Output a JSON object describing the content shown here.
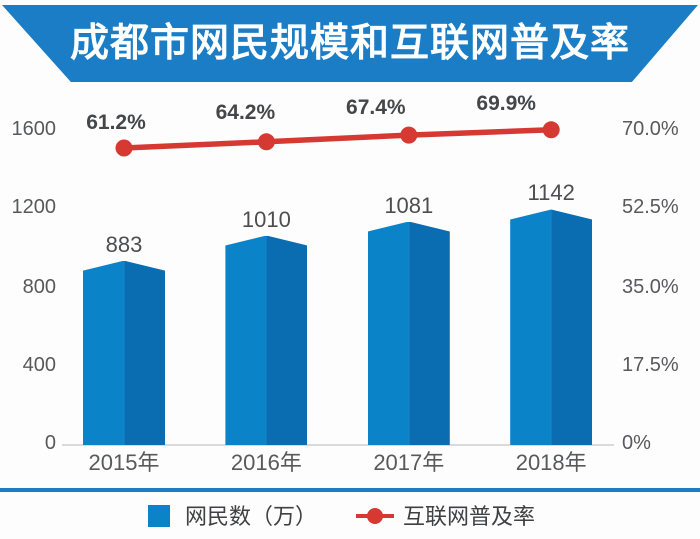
{
  "title": "成都市网民规模和互联网普及率",
  "legend": {
    "bar_label": "网民数（万）",
    "line_label": "互联网普及率"
  },
  "chart_data": {
    "type": "bar",
    "title": "成都市网民规模和互联网普及率",
    "categories": [
      "2015年",
      "2016年",
      "2017年",
      "2018年"
    ],
    "series": [
      {
        "name": "网民数（万）",
        "type": "bar",
        "values": [
          883,
          1010,
          1081,
          1142
        ],
        "labels": [
          "883",
          "1010",
          "1081",
          "1142"
        ]
      },
      {
        "name": "互联网普及率",
        "type": "line",
        "values": [
          61.2,
          64.2,
          67.4,
          69.9
        ],
        "labels": [
          "61.2%",
          "64.2%",
          "67.4%",
          "69.9%"
        ]
      }
    ],
    "left_axis": {
      "ticks": [
        "1600",
        "1200",
        "800",
        "400",
        "0"
      ],
      "range": [
        0,
        1600
      ]
    },
    "right_axis": {
      "ticks": [
        "70.0%",
        "52.5%",
        "35.0%",
        "17.5%",
        "0%"
      ],
      "range": [
        0,
        70
      ]
    },
    "grid": "off",
    "legend_position": "bottom",
    "colors": {
      "banner": "#1a7dc5",
      "bar_left_face": "#0b83c9",
      "bar_right_face": "#0a6cb1",
      "bar_ridge": "#1583c6",
      "line": "#d63832",
      "axis_text": "#58595b",
      "divider": "#1b7ec5",
      "baseline": "#dadada"
    }
  }
}
